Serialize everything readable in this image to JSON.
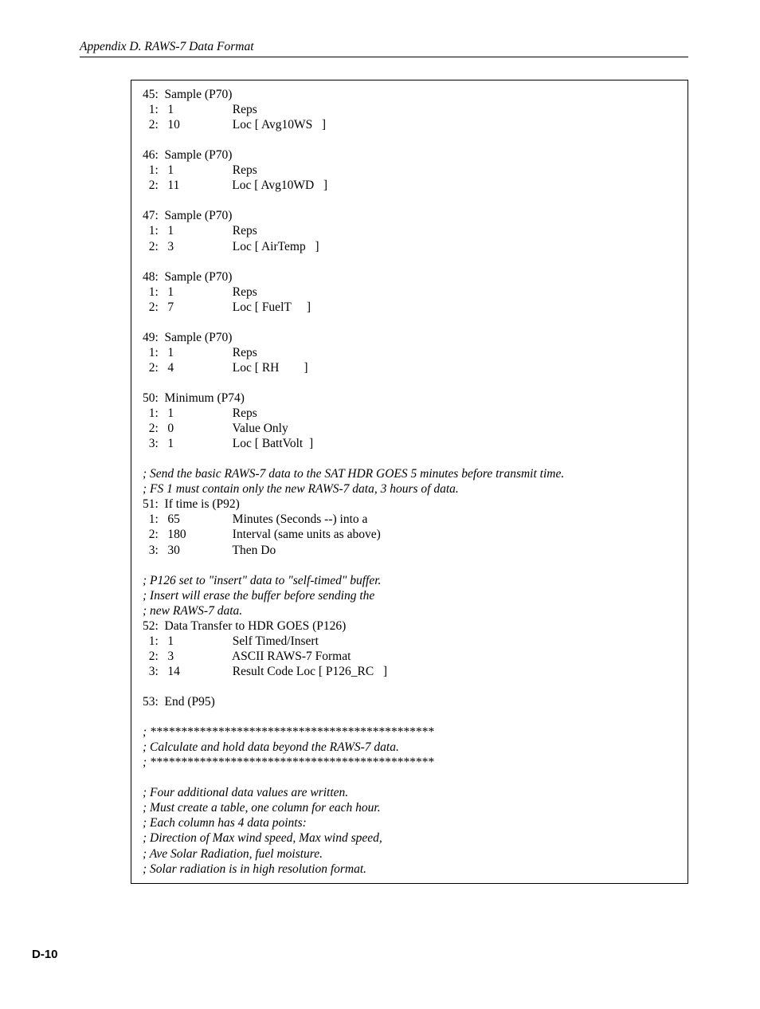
{
  "header": "Appendix D.  RAWS-7 Data Format",
  "footer": "D-10",
  "lines": [
    {
      "t": "45:  Sample (P70)",
      "c": false
    },
    {
      "t": "  1:   1                   Reps",
      "c": false
    },
    {
      "t": "  2:   10                 Loc [ Avg10WS   ]",
      "c": false
    },
    {
      "t": "",
      "c": false,
      "blank": true
    },
    {
      "t": "46:  Sample (P70)",
      "c": false
    },
    {
      "t": "  1:   1                   Reps",
      "c": false
    },
    {
      "t": "  2:   11                 Loc [ Avg10WD   ]",
      "c": false
    },
    {
      "t": "",
      "c": false,
      "blank": true
    },
    {
      "t": "47:  Sample (P70)",
      "c": false
    },
    {
      "t": "  1:   1                   Reps",
      "c": false
    },
    {
      "t": "  2:   3                   Loc [ AirTemp   ]",
      "c": false
    },
    {
      "t": "",
      "c": false,
      "blank": true
    },
    {
      "t": "48:  Sample (P70)",
      "c": false
    },
    {
      "t": "  1:   1                   Reps",
      "c": false
    },
    {
      "t": "  2:   7                   Loc [ FuelT     ]",
      "c": false
    },
    {
      "t": "",
      "c": false,
      "blank": true
    },
    {
      "t": "49:  Sample (P70)",
      "c": false
    },
    {
      "t": "  1:   1                   Reps",
      "c": false
    },
    {
      "t": "  2:   4                   Loc [ RH        ]",
      "c": false
    },
    {
      "t": "",
      "c": false,
      "blank": true
    },
    {
      "t": "50:  Minimum (P74)",
      "c": false
    },
    {
      "t": "  1:   1                   Reps",
      "c": false
    },
    {
      "t": "  2:   0                   Value Only",
      "c": false
    },
    {
      "t": "  3:   1                   Loc [ BattVolt  ]",
      "c": false
    },
    {
      "t": "",
      "c": false,
      "blank": true
    },
    {
      "t": "; Send the basic RAWS-7 data to the SAT HDR GOES 5 minutes before transmit time.",
      "c": true
    },
    {
      "t": "; FS 1 must contain only the new RAWS-7 data, 3 hours of data.",
      "c": true
    },
    {
      "t": "51:  If time is (P92)",
      "c": false
    },
    {
      "t": "  1:   65                 Minutes (Seconds --) into a",
      "c": false
    },
    {
      "t": "  2:   180               Interval (same units as above)",
      "c": false
    },
    {
      "t": "  3:   30                 Then Do",
      "c": false
    },
    {
      "t": "",
      "c": false,
      "blank": true
    },
    {
      "t": "; P126 set to \"insert\" data to \"self-timed\" buffer.",
      "c": true
    },
    {
      "t": "; Insert will erase the buffer before sending the",
      "c": true
    },
    {
      "t": "; new RAWS-7 data.",
      "c": true
    },
    {
      "t": "52:  Data Transfer to HDR GOES (P126)",
      "c": false
    },
    {
      "t": "  1:   1                   Self Timed/Insert",
      "c": false
    },
    {
      "t": "  2:   3                   ASCII RAWS-7 Format",
      "c": false
    },
    {
      "t": "  3:   14                 Result Code Loc [ P126_RC   ]",
      "c": false
    },
    {
      "t": "",
      "c": false,
      "blank": true
    },
    {
      "t": "53:  End (P95)",
      "c": false
    },
    {
      "t": "",
      "c": false,
      "blank": true
    },
    {
      "t": "; **********************************************",
      "c": true
    },
    {
      "t": "; Calculate and hold data beyond the RAWS-7 data.",
      "c": true
    },
    {
      "t": "; **********************************************",
      "c": true
    },
    {
      "t": "",
      "c": false,
      "blank": true
    },
    {
      "t": "; Four additional data values are written.",
      "c": true
    },
    {
      "t": "; Must create a table, one column for each hour.",
      "c": true
    },
    {
      "t": "; Each column has 4 data points:",
      "c": true
    },
    {
      "t": "; Direction of Max wind speed, Max wind speed,",
      "c": true
    },
    {
      "t": "; Ave Solar Radiation, fuel moisture.",
      "c": true
    },
    {
      "t": "; Solar radiation is in high resolution format.",
      "c": true
    }
  ]
}
